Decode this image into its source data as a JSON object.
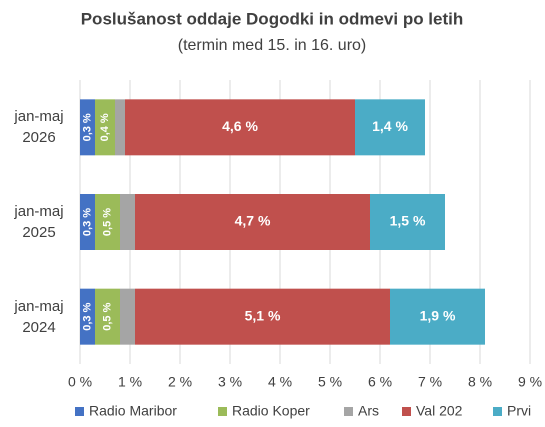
{
  "chart_data": {
    "type": "stacked-barh",
    "title": "Poslušanost oddaje Dogodki in odmevi po letih",
    "subtitle": "(termin med 15. in 16. uro)",
    "categories": [
      "jan-maj 2026",
      "jan-maj 2025",
      "jan-maj 2024"
    ],
    "series": [
      {
        "name": "Radio Maribor",
        "color": "#4472c4",
        "values": [
          0.3,
          0.3,
          0.3
        ],
        "value_labels": [
          "0,3 %",
          "0,3 %",
          "0,3 %"
        ]
      },
      {
        "name": "Radio Koper",
        "color": "#9bbb59",
        "values": [
          0.4,
          0.5,
          0.5
        ],
        "value_labels": [
          "0,4 %",
          "0,5 %",
          "0,5 %"
        ]
      },
      {
        "name": "Ars",
        "color": "#a5a5a5",
        "values": [
          0.2,
          0.3,
          0.3
        ]
      },
      {
        "name": "Val 202",
        "color": "#c0504d",
        "values": [
          4.6,
          4.7,
          5.1
        ],
        "value_labels": [
          "4,6 %",
          "4,7 %",
          "5,1 %"
        ]
      },
      {
        "name": "Prvi",
        "color": "#4bacc6",
        "values": [
          1.4,
          1.5,
          1.9
        ],
        "value_labels": [
          "1,4 %",
          "1,5 %",
          "1,9 %"
        ]
      }
    ],
    "xlim": [
      0,
      9
    ],
    "xticks": [
      {
        "value": 0,
        "label": "0 %"
      },
      {
        "value": 1,
        "label": "1 %"
      },
      {
        "value": 2,
        "label": "2 %"
      },
      {
        "value": 3,
        "label": "3 %"
      },
      {
        "value": 4,
        "label": "4 %"
      },
      {
        "value": 5,
        "label": "5 %"
      },
      {
        "value": 6,
        "label": "6 %"
      },
      {
        "value": 7,
        "label": "7 %"
      },
      {
        "value": 8,
        "label": "8 %"
      },
      {
        "value": 9,
        "label": "9 %"
      }
    ],
    "grid": true,
    "legend": "bottom"
  }
}
